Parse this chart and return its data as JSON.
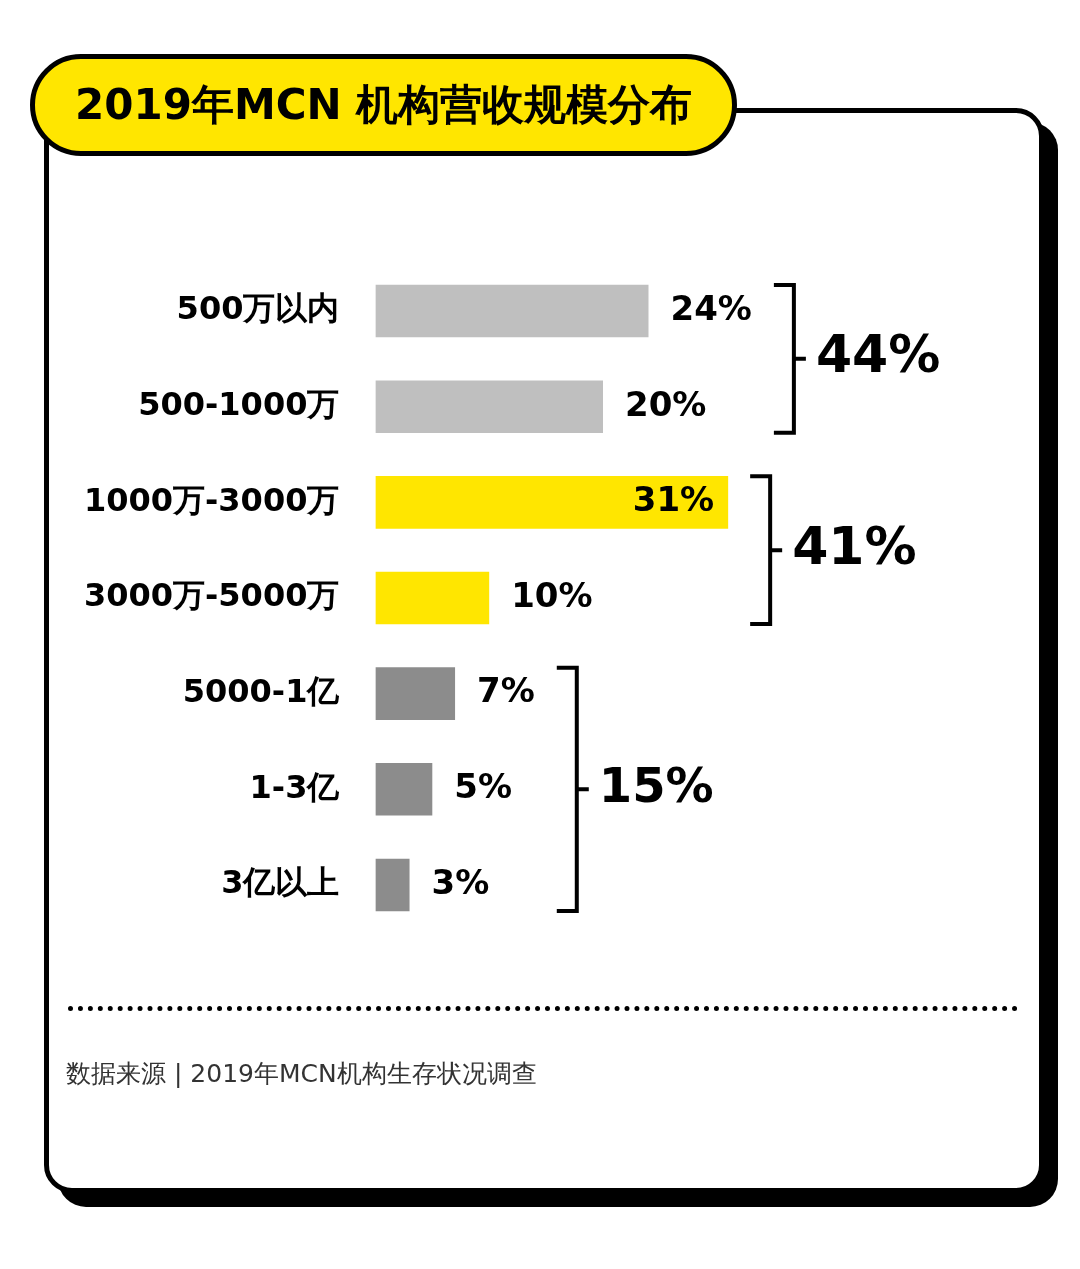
{
  "chart_data": {
    "type": "bar",
    "orientation": "horizontal",
    "title": "2019年MCN 机构营收规模分布",
    "categories": [
      "500万以内",
      "500-1000万",
      "1000万-3000万",
      "3000万-5000万",
      "5000-1亿",
      "1-3亿",
      "3亿以上"
    ],
    "values": [
      24,
      20,
      31,
      10,
      7,
      5,
      3
    ],
    "colors": [
      "#bfbfbf",
      "#bfbfbf",
      "#ffe600",
      "#ffe600",
      "#8c8c8c",
      "#8c8c8c",
      "#8c8c8c"
    ],
    "value_labels": [
      "24%",
      "20%",
      "31%",
      "10%",
      "7%",
      "5%",
      "3%"
    ],
    "grid": false,
    "legend": false,
    "tick_labels": "y",
    "annotations": [
      "44%",
      "41%",
      "15%",
      "数据来源 | 2019年MCN机构生存状况调查"
    ]
  }
}
